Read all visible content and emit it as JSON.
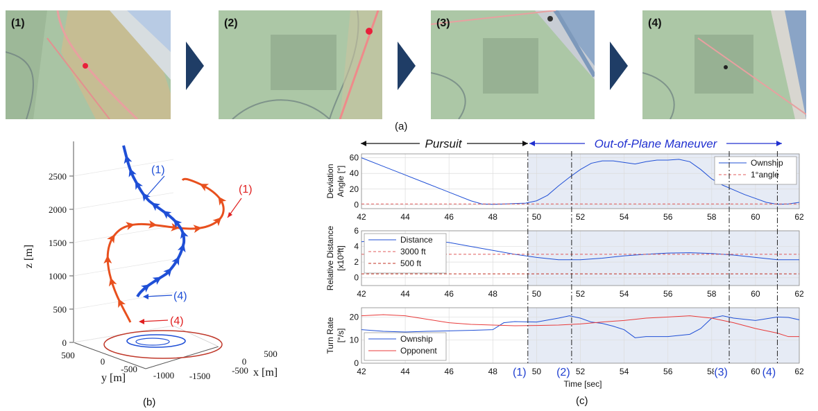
{
  "frames": [
    {
      "label": "(1)"
    },
    {
      "label": "(2)"
    },
    {
      "label": "(3)"
    },
    {
      "label": "(4)"
    }
  ],
  "captions": {
    "a": "(a)",
    "b": "(b)",
    "c": "(c)"
  },
  "colors": {
    "ownship": "#1f4fd6",
    "opponent": "#e8501e",
    "arrow": "#1f3d66",
    "shade": "#e6ebf5",
    "dash_red": "#e05a5a",
    "dash_dark": "#c03020"
  },
  "chart_data": [
    {
      "type": "line3d",
      "title": "",
      "zlabel": "z [m]",
      "xlabel": "x [m]",
      "ylabel": "y [m]",
      "z_ticks": [
        "0",
        "500",
        "1000",
        "1500",
        "2000",
        "2500"
      ],
      "y_ticks": [
        "500",
        "0",
        "-500",
        "-1000",
        "-1500"
      ],
      "x_ticks": [
        "500",
        "0",
        "-500"
      ],
      "annotations": [
        {
          "text": "(1)",
          "series": "ownship"
        },
        {
          "text": "(1)",
          "series": "opponent"
        },
        {
          "text": "(4)",
          "series": "ownship"
        },
        {
          "text": "(4)",
          "series": "opponent"
        }
      ]
    },
    {
      "type": "line",
      "phases": {
        "pursuit": "Pursuit",
        "maneuver": "Out-of-Plane Maneuver",
        "boundary": 49.6
      },
      "xlim": [
        42,
        62
      ],
      "x_ticks": [
        "42",
        "44",
        "46",
        "48",
        "50",
        "52",
        "54",
        "56",
        "58",
        "60",
        "62"
      ],
      "xlabel": "Time [sec]",
      "event_markers": [
        {
          "label": "(1)",
          "x": 49.6
        },
        {
          "label": "(2)",
          "x": 51.6
        },
        {
          "label": "(3)",
          "x": 58.8
        },
        {
          "label": "(4)",
          "x": 61.0
        }
      ],
      "subplots": [
        {
          "ylabel": [
            "Deviation",
            "Angle [°]"
          ],
          "ylim": [
            -5,
            65
          ],
          "y_ticks": [
            "60",
            "40",
            "20",
            "0"
          ],
          "legend": [
            "Ownship",
            "1°angle"
          ],
          "series": [
            {
              "name": "Ownship",
              "x": [
                42,
                43,
                44,
                45,
                46,
                47,
                47.5,
                48,
                48.5,
                49,
                49.5,
                50,
                50.5,
                51,
                51.5,
                52,
                52.5,
                53,
                53.5,
                54,
                54.5,
                55,
                55.5,
                56,
                56.5,
                57,
                57.5,
                58,
                58.5,
                59,
                59.5,
                60,
                60.5,
                61,
                61.5,
                62
              ],
              "y": [
                60,
                49,
                38,
                27,
                16,
                5,
                1,
                0.5,
                1,
                1.5,
                2,
                5,
                12,
                24,
                35,
                45,
                53,
                56,
                56,
                54,
                52,
                55,
                57,
                57,
                58,
                55,
                45,
                33,
                25,
                19,
                13,
                8,
                3,
                0.5,
                1,
                3
              ]
            },
            {
              "name": "1°angle",
              "x": [
                42,
                62
              ],
              "y": [
                1,
                1
              ]
            }
          ]
        },
        {
          "ylabel": [
            "Relative Distance",
            "[x10³ft]"
          ],
          "ylim": [
            -1,
            6
          ],
          "y_ticks": [
            "6",
            "4",
            "2",
            "0"
          ],
          "legend": [
            "Distance",
            "3000 ft",
            "500 ft"
          ],
          "series": [
            {
              "name": "Distance",
              "x": [
                42,
                43,
                44,
                45,
                46,
                47,
                48,
                49,
                50,
                51,
                52,
                53,
                54,
                55,
                56,
                57,
                58,
                59,
                60,
                61,
                62
              ],
              "y": [
                4.6,
                4.8,
                4.9,
                4.8,
                4.5,
                4.0,
                3.5,
                3.0,
                2.6,
                2.3,
                2.3,
                2.5,
                2.8,
                3.0,
                3.15,
                3.2,
                3.1,
                2.9,
                2.6,
                2.3,
                2.3
              ]
            },
            {
              "name": "3000 ft",
              "x": [
                42,
                62
              ],
              "y": [
                3,
                3
              ]
            },
            {
              "name": "500 ft",
              "x": [
                42,
                62
              ],
              "y": [
                0.5,
                0.5
              ]
            }
          ]
        },
        {
          "ylabel": [
            "Turn Rate",
            "[°/s]"
          ],
          "ylim": [
            0,
            24
          ],
          "y_ticks": [
            "20",
            "10",
            "0"
          ],
          "legend": [
            "Ownship",
            "Opponent"
          ],
          "series": [
            {
              "name": "Ownship",
              "x": [
                42,
                43,
                44,
                45,
                46,
                47,
                48,
                48.5,
                49,
                50,
                51,
                51.5,
                52,
                52.5,
                53,
                53.5,
                54,
                54.5,
                55,
                56,
                57,
                57.5,
                58,
                58.5,
                59,
                60,
                61,
                61.5,
                62
              ],
              "y": [
                14.5,
                13.8,
                13.5,
                13.8,
                14,
                14.2,
                14.5,
                17.5,
                18,
                17.8,
                19.5,
                20.5,
                19.5,
                17.8,
                17.2,
                16,
                14.5,
                11,
                11.5,
                11.5,
                12.5,
                15,
                19.5,
                20.5,
                19.5,
                18.5,
                20,
                19.8,
                18.8
              ]
            },
            {
              "name": "Opponent",
              "x": [
                42,
                43,
                44,
                45,
                46,
                47,
                48,
                49,
                50,
                51,
                52,
                53,
                54,
                55,
                56,
                57,
                58,
                59,
                60,
                61,
                61.5,
                62
              ],
              "y": [
                20.5,
                21,
                20.5,
                19,
                17.5,
                16.8,
                16.5,
                16.2,
                16.3,
                16.5,
                17,
                17.8,
                18.5,
                19.5,
                20,
                20.5,
                19.5,
                17.5,
                15,
                13,
                11.5,
                11.5
              ]
            }
          ]
        }
      ]
    }
  ]
}
